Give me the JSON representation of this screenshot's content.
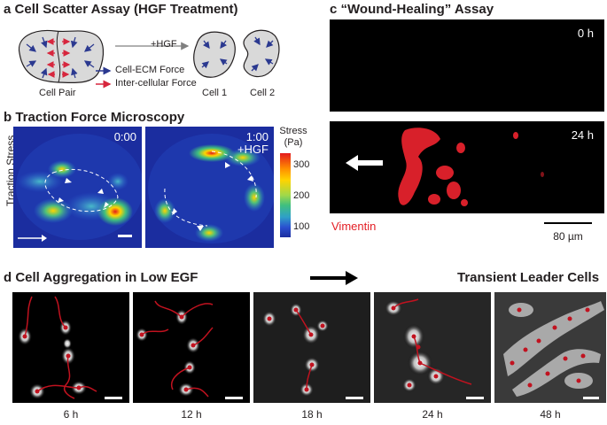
{
  "panel_a": {
    "letter": "a",
    "title": "Cell Scatter Assay (HGF Treatment)",
    "treatment_label": "+HGF",
    "label_cell_pair": "Cell Pair",
    "label_cell1": "Cell 1",
    "label_cell2": "Cell 2",
    "legend_ecm": "Cell-ECM Force",
    "legend_intercellular": "Inter-cellular Force",
    "colors": {
      "ecm": "#2b3990",
      "intercellular": "#d7263d",
      "cell_fill": "#d9d9d9"
    }
  },
  "panel_b": {
    "letter": "b",
    "title": "Traction Force Microscopy",
    "y_label": "Traction Stress",
    "time_left": "0:00",
    "time_right": "1:00",
    "treatment_right": "+HGF",
    "colorbar_title": "Stress",
    "colorbar_unit": "(Pa)",
    "colorbar_ticks": [
      "300",
      "200",
      "100"
    ]
  },
  "panel_c": {
    "letter": "c",
    "title": "“Wound-Healing” Assay",
    "time_top": "0 h",
    "time_bottom": "24 h",
    "stain_label": "Vimentin",
    "scale_label": "80 µm",
    "colors": {
      "stain": "#e31e24"
    }
  },
  "panel_d": {
    "letter": "d",
    "title_left": "Cell Aggregation in Low EGF",
    "title_right": "Transient Leader Cells",
    "timepoints": [
      "6 h",
      "12 h",
      "18 h",
      "24 h",
      "48 h"
    ],
    "colors": {
      "tracks": "#c1121f"
    }
  }
}
